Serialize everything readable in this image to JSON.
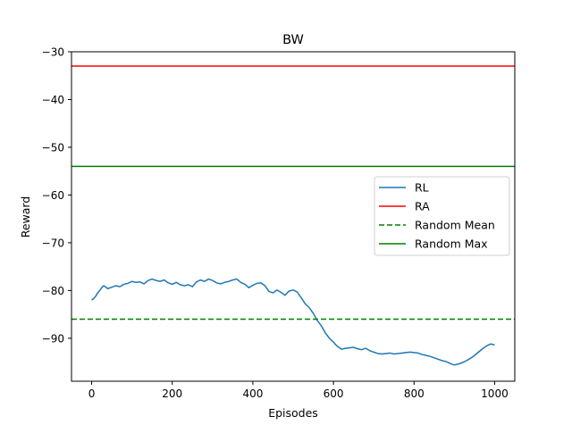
{
  "chart_data": {
    "type": "line",
    "title": "BW",
    "xlabel": "Episodes",
    "ylabel": "Reward",
    "xlim": [
      -50,
      1050
    ],
    "ylim": [
      -99,
      -30
    ],
    "x_ticks": [
      0,
      200,
      400,
      600,
      800,
      1000
    ],
    "y_ticks": [
      -90,
      -80,
      -70,
      -60,
      -50,
      -40,
      -30
    ],
    "grid": false,
    "legend_position": "center-right",
    "series": [
      {
        "name": "RL",
        "color": "#1f77b4",
        "style": "solid",
        "x": [
          0,
          5,
          10,
          15,
          20,
          25,
          30,
          35,
          40,
          50,
          60,
          70,
          80,
          90,
          100,
          110,
          120,
          130,
          140,
          150,
          160,
          170,
          180,
          190,
          200,
          210,
          220,
          230,
          240,
          250,
          260,
          270,
          280,
          290,
          300,
          310,
          320,
          330,
          340,
          350,
          360,
          370,
          380,
          390,
          400,
          410,
          420,
          430,
          440,
          450,
          460,
          470,
          480,
          490,
          500,
          510,
          520,
          530,
          540,
          550,
          560,
          570,
          580,
          590,
          600,
          605,
          610,
          620,
          630,
          640,
          650,
          660,
          670,
          680,
          690,
          700,
          710,
          720,
          730,
          740,
          750,
          760,
          770,
          780,
          790,
          800,
          810,
          820,
          830,
          840,
          850,
          860,
          870,
          880,
          890,
          900,
          910,
          920,
          930,
          940,
          950,
          960,
          970,
          980,
          990,
          1000
        ],
        "y": [
          -82.0,
          -81.7,
          -81.2,
          -80.5,
          -80.0,
          -79.4,
          -79.0,
          -79.3,
          -79.6,
          -79.3,
          -79.0,
          -79.2,
          -78.7,
          -78.5,
          -78.1,
          -78.3,
          -78.2,
          -78.6,
          -77.9,
          -77.6,
          -77.9,
          -78.1,
          -77.8,
          -78.4,
          -78.7,
          -78.3,
          -78.8,
          -79.0,
          -78.8,
          -79.2,
          -78.2,
          -77.8,
          -78.1,
          -77.6,
          -77.9,
          -78.4,
          -78.6,
          -78.3,
          -78.1,
          -77.8,
          -77.6,
          -78.3,
          -78.7,
          -79.4,
          -78.9,
          -78.5,
          -78.4,
          -79.0,
          -80.2,
          -80.5,
          -79.9,
          -80.4,
          -81.0,
          -80.1,
          -79.9,
          -80.3,
          -81.5,
          -82.8,
          -83.6,
          -84.8,
          -86.3,
          -87.4,
          -88.9,
          -90.0,
          -90.8,
          -91.3,
          -91.7,
          -92.3,
          -92.1,
          -92.0,
          -91.9,
          -92.2,
          -92.4,
          -92.1,
          -92.6,
          -92.9,
          -93.2,
          -93.3,
          -93.2,
          -93.1,
          -93.3,
          -93.2,
          -93.1,
          -93.0,
          -92.9,
          -93.0,
          -93.1,
          -93.4,
          -93.6,
          -93.8,
          -94.1,
          -94.4,
          -94.7,
          -94.9,
          -95.3,
          -95.6,
          -95.4,
          -95.1,
          -94.7,
          -94.2,
          -93.6,
          -92.9,
          -92.2,
          -91.6,
          -91.2,
          -91.4
        ]
      },
      {
        "name": "RA",
        "color": "#ff0000",
        "style": "solid",
        "hline": -33
      },
      {
        "name": "Random Mean",
        "color": "#008000",
        "style": "dashed",
        "hline": -86
      },
      {
        "name": "Random Max",
        "color": "#008000",
        "style": "solid",
        "hline": -54
      }
    ]
  }
}
